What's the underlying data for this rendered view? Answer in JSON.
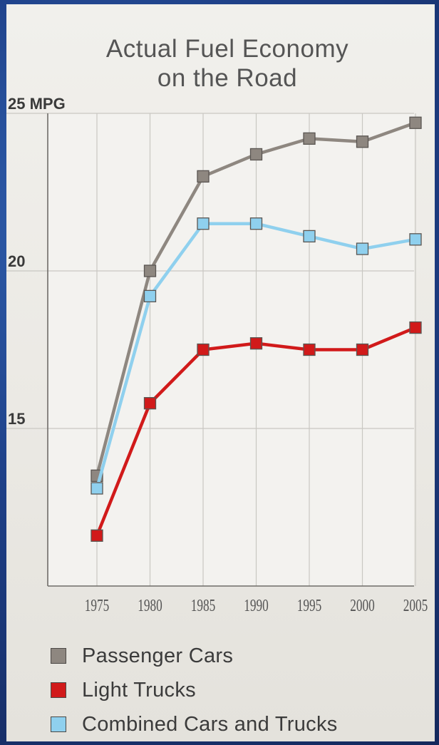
{
  "chart_data": {
    "type": "line",
    "title": "Actual Fuel Economy on the Road",
    "title_lines": [
      "Actual Fuel Economy",
      "on the Road"
    ],
    "y_unit_label": "MPG",
    "ylabel": "",
    "xlabel": "",
    "x": [
      "1975",
      "1980",
      "1985",
      "1990",
      "1995",
      "2000",
      "2005"
    ],
    "ylim": [
      10,
      25
    ],
    "y_ticks": [
      {
        "value": 25,
        "label": "25 MPG"
      },
      {
        "value": 20,
        "label": "20"
      },
      {
        "value": 15,
        "label": "15"
      }
    ],
    "grid": true,
    "legend_position": "bottom",
    "series": [
      {
        "name": "Passenger Cars",
        "color": "#8e8780",
        "values": [
          13.5,
          20.0,
          23.0,
          23.7,
          24.2,
          24.1,
          24.7
        ]
      },
      {
        "name": "Light Trucks",
        "color": "#d11a1a",
        "values": [
          11.6,
          15.8,
          17.5,
          17.7,
          17.5,
          17.5,
          18.2
        ]
      },
      {
        "name": "Combined Cars and Trucks",
        "color": "#8fd0ee",
        "values": [
          13.1,
          19.2,
          21.5,
          21.5,
          21.1,
          20.7,
          21.0
        ]
      }
    ]
  }
}
